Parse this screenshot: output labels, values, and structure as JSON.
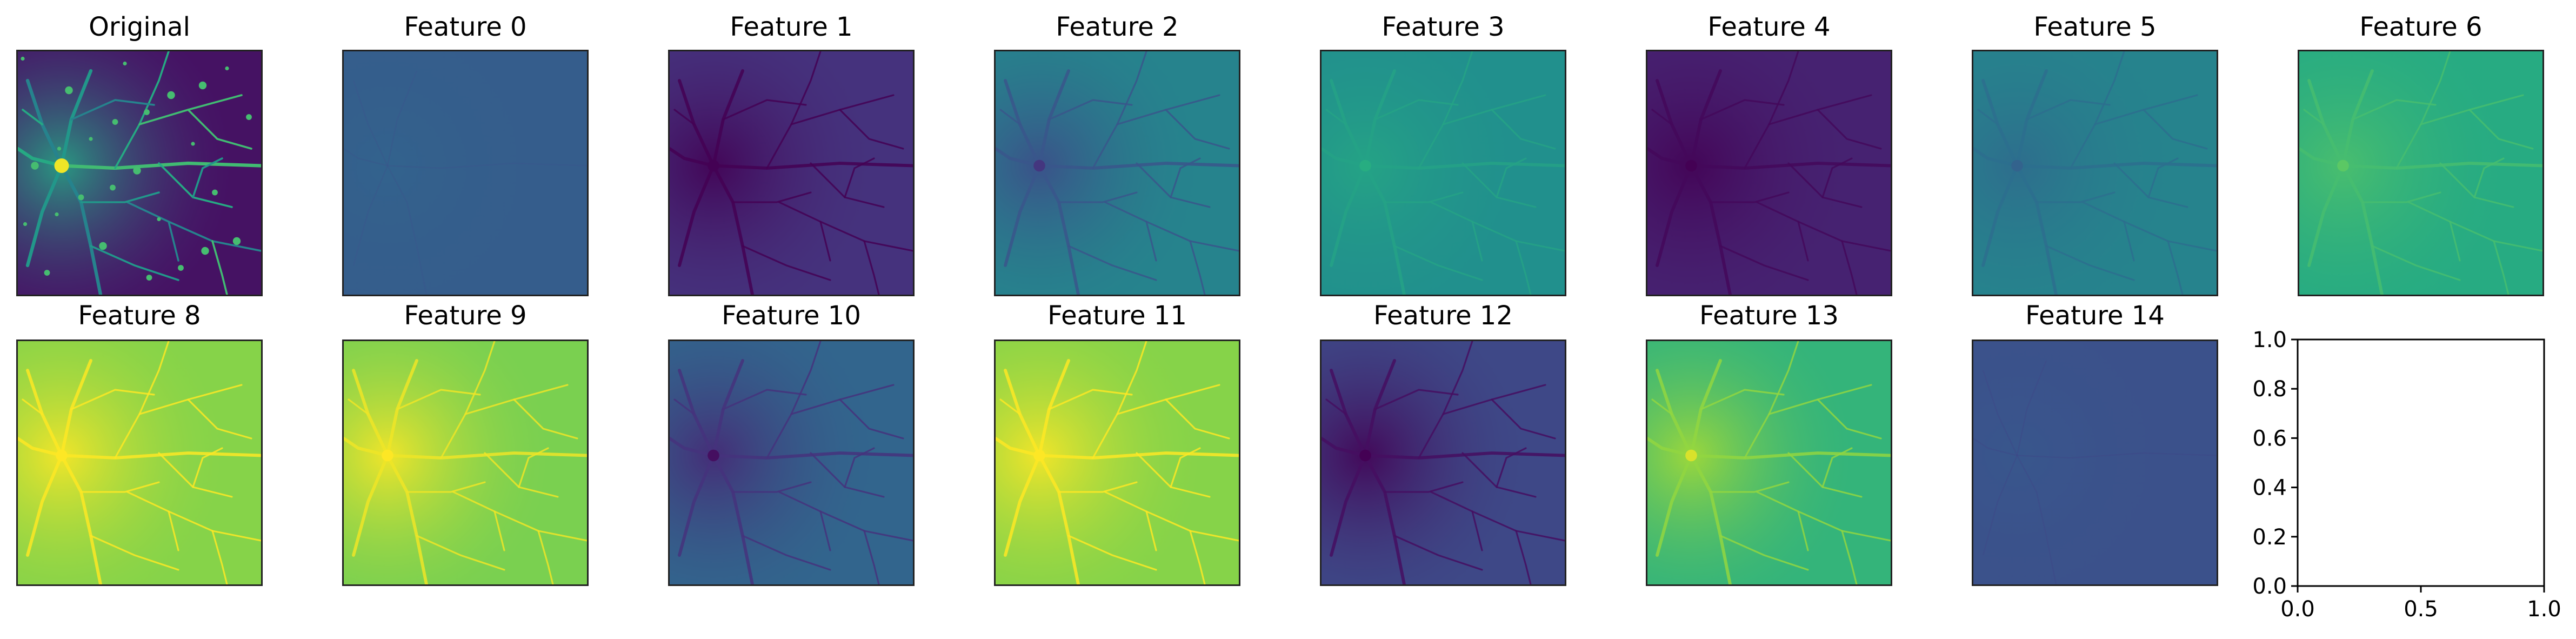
{
  "chart_data": {
    "type": "image_grid",
    "panels": [
      {
        "title": "Original",
        "colormap": "viridis",
        "mean": 0.12,
        "contrast": "high",
        "style": "original"
      },
      {
        "title": "Feature 0",
        "colormap": "viridis",
        "mean": 0.3,
        "contrast": "very-low",
        "style": "flat"
      },
      {
        "title": "Feature 1",
        "colormap": "viridis",
        "mean": 0.15,
        "contrast": "medium",
        "style": "dark-filaments"
      },
      {
        "title": "Feature 2",
        "colormap": "viridis",
        "mean": 0.45,
        "contrast": "medium",
        "style": "dark-filaments"
      },
      {
        "title": "Feature 3",
        "colormap": "viridis",
        "mean": 0.5,
        "contrast": "low",
        "style": "bright-filaments"
      },
      {
        "title": "Feature 4",
        "colormap": "viridis",
        "mean": 0.1,
        "contrast": "low",
        "style": "dark-filaments"
      },
      {
        "title": "Feature 5",
        "colormap": "viridis",
        "mean": 0.45,
        "contrast": "low",
        "style": "dark-filaments"
      },
      {
        "title": "Feature 6",
        "colormap": "viridis",
        "mean": 0.62,
        "contrast": "low",
        "style": "bright-filaments"
      },
      {
        "title": "Feature 8",
        "colormap": "viridis",
        "mean": 0.82,
        "contrast": "medium",
        "style": "bright-filaments"
      },
      {
        "title": "Feature 9",
        "colormap": "viridis",
        "mean": 0.8,
        "contrast": "medium",
        "style": "bright-filaments"
      },
      {
        "title": "Feature 10",
        "colormap": "viridis",
        "mean": 0.33,
        "contrast": "medium",
        "style": "dark-filaments"
      },
      {
        "title": "Feature 11",
        "colormap": "viridis",
        "mean": 0.82,
        "contrast": "medium",
        "style": "bright-filaments"
      },
      {
        "title": "Feature 12",
        "colormap": "viridis",
        "mean": 0.22,
        "contrast": "medium",
        "style": "dark-filaments"
      },
      {
        "title": "Feature 13",
        "colormap": "viridis",
        "mean": 0.66,
        "contrast": "medium",
        "style": "bright-filaments"
      },
      {
        "title": "Feature 14",
        "colormap": "viridis",
        "mean": 0.25,
        "contrast": "very-low",
        "style": "flat"
      }
    ],
    "empty_axes": {
      "xlim": [
        0.0,
        1.0
      ],
      "ylim": [
        0.0,
        1.0
      ],
      "xticks": [
        "0.0",
        "0.5",
        "1.0"
      ],
      "yticks": [
        "0.0",
        "0.2",
        "0.4",
        "0.6",
        "0.8",
        "1.0"
      ]
    }
  }
}
